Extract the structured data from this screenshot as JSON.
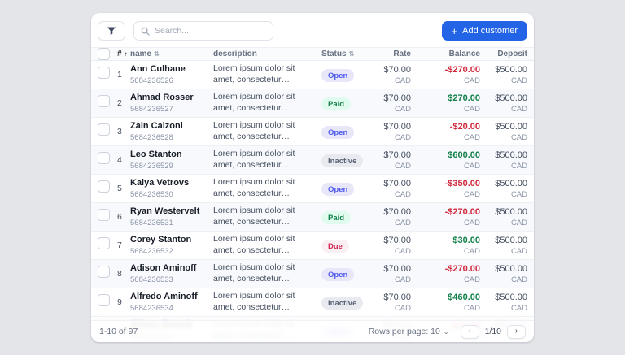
{
  "toolbar": {
    "filter_icon": "funnel-icon",
    "search_placeholder": "Search...",
    "add_customer": {
      "icon": "+",
      "label": "Add customer"
    }
  },
  "colors": {
    "accent": "#2264e5",
    "negative": "#d1293d",
    "positive": "#14804a",
    "status": {
      "Open": {
        "bg": "#e7e7f9",
        "text": "#4f5aed"
      },
      "Paid": {
        "bg": "#e1fcef",
        "text": "#14804a"
      },
      "Inactive": {
        "bg": "#e9eaf0",
        "text": "#5a6376"
      },
      "Due": {
        "bg": "#faf0f3",
        "text": "#d12953"
      }
    }
  },
  "table": {
    "columns": [
      {
        "key": "select",
        "label": "",
        "sort": null,
        "align": "left"
      },
      {
        "key": "num",
        "label": "#",
        "sort": "asc",
        "align": "left",
        "dark": true
      },
      {
        "key": "name",
        "label": "name",
        "sort": "both",
        "align": "left"
      },
      {
        "key": "description",
        "label": "description",
        "sort": null,
        "align": "left"
      },
      {
        "key": "status",
        "label": "Status",
        "sort": "both",
        "align": "left"
      },
      {
        "key": "rate",
        "label": "Rate",
        "sort": null,
        "align": "right"
      },
      {
        "key": "balance",
        "label": "Balance",
        "sort": null,
        "align": "right"
      },
      {
        "key": "deposit",
        "label": "Deposit",
        "sort": null,
        "align": "right"
      }
    ],
    "rows": [
      {
        "num": "1",
        "name": "Ann Culhane",
        "id": "5684236526",
        "description": "Lorem ipsum dolor sit amet, consectetur adipiscing elit. Nulla...",
        "status": "Open",
        "rate": "$70.00",
        "balance": "-$270.00",
        "deposit": "$500.00",
        "currency": "CAD",
        "faded": false
      },
      {
        "num": "2",
        "name": "Ahmad Rosser",
        "id": "5684236527",
        "description": "Lorem ipsum dolor sit amet, consectetur adipiscing elit. Nulla...",
        "status": "Paid",
        "rate": "$70.00",
        "balance": "$270.00",
        "deposit": "$500.00",
        "currency": "CAD",
        "faded": false
      },
      {
        "num": "3",
        "name": "Zain Calzoni",
        "id": "5684236528",
        "description": "Lorem ipsum dolor sit amet, consectetur adipiscing elit. Nulla...",
        "status": "Open",
        "rate": "$70.00",
        "balance": "-$20.00",
        "deposit": "$500.00",
        "currency": "CAD",
        "faded": false
      },
      {
        "num": "4",
        "name": "Leo Stanton",
        "id": "5684236529",
        "description": "Lorem ipsum dolor sit amet, consectetur adipiscing elit. Nulla...",
        "status": "Inactive",
        "rate": "$70.00",
        "balance": "$600.00",
        "deposit": "$500.00",
        "currency": "CAD",
        "faded": false
      },
      {
        "num": "5",
        "name": "Kaiya Vetrovs",
        "id": "5684236530",
        "description": "Lorem ipsum dolor sit amet, consectetur adipiscing elit. Nulla...",
        "status": "Open",
        "rate": "$70.00",
        "balance": "-$350.00",
        "deposit": "$500.00",
        "currency": "CAD",
        "faded": false
      },
      {
        "num": "6",
        "name": "Ryan Westervelt",
        "id": "5684236531",
        "description": "Lorem ipsum dolor sit amet, consectetur adipiscing elit. Nulla...",
        "status": "Paid",
        "rate": "$70.00",
        "balance": "-$270.00",
        "deposit": "$500.00",
        "currency": "CAD",
        "faded": false
      },
      {
        "num": "7",
        "name": "Corey Stanton",
        "id": "5684236532",
        "description": "Lorem ipsum dolor sit amet, consectetur adipiscing elit. Nulla...",
        "status": "Due",
        "rate": "$70.00",
        "balance": "$30.00",
        "deposit": "$500.00",
        "currency": "CAD",
        "faded": false
      },
      {
        "num": "8",
        "name": "Adison Aminoff",
        "id": "5684236533",
        "description": "Lorem ipsum dolor sit amet, consectetur adipiscing elit. Nulla...",
        "status": "Open",
        "rate": "$70.00",
        "balance": "-$270.00",
        "deposit": "$500.00",
        "currency": "CAD",
        "faded": false
      },
      {
        "num": "9",
        "name": "Alfredo Aminoff",
        "id": "5684236534",
        "description": "Lorem ipsum dolor sit amet, consectetur adipiscing elit. Nulla...",
        "status": "Inactive",
        "rate": "$70.00",
        "balance": "$460.00",
        "deposit": "$500.00",
        "currency": "CAD",
        "faded": false
      },
      {
        "num": "10",
        "name": "Wilson Botosh",
        "id": "5684236535",
        "description": "Lorem ipsum dolor sit amet, consectetur adipiscing elit. Nulla...",
        "status": "Open",
        "rate": "$70.00",
        "balance": "-$70.00",
        "deposit": "$500.00",
        "currency": "CAD",
        "faded": true
      }
    ]
  },
  "footer": {
    "range": "1-10 of 97",
    "rows_per_page_label": "Rows per page: 10",
    "rows_per_page_chevron": "⌄",
    "prev_icon": "‹",
    "next_icon": "›",
    "page_indicator": "1/10"
  }
}
